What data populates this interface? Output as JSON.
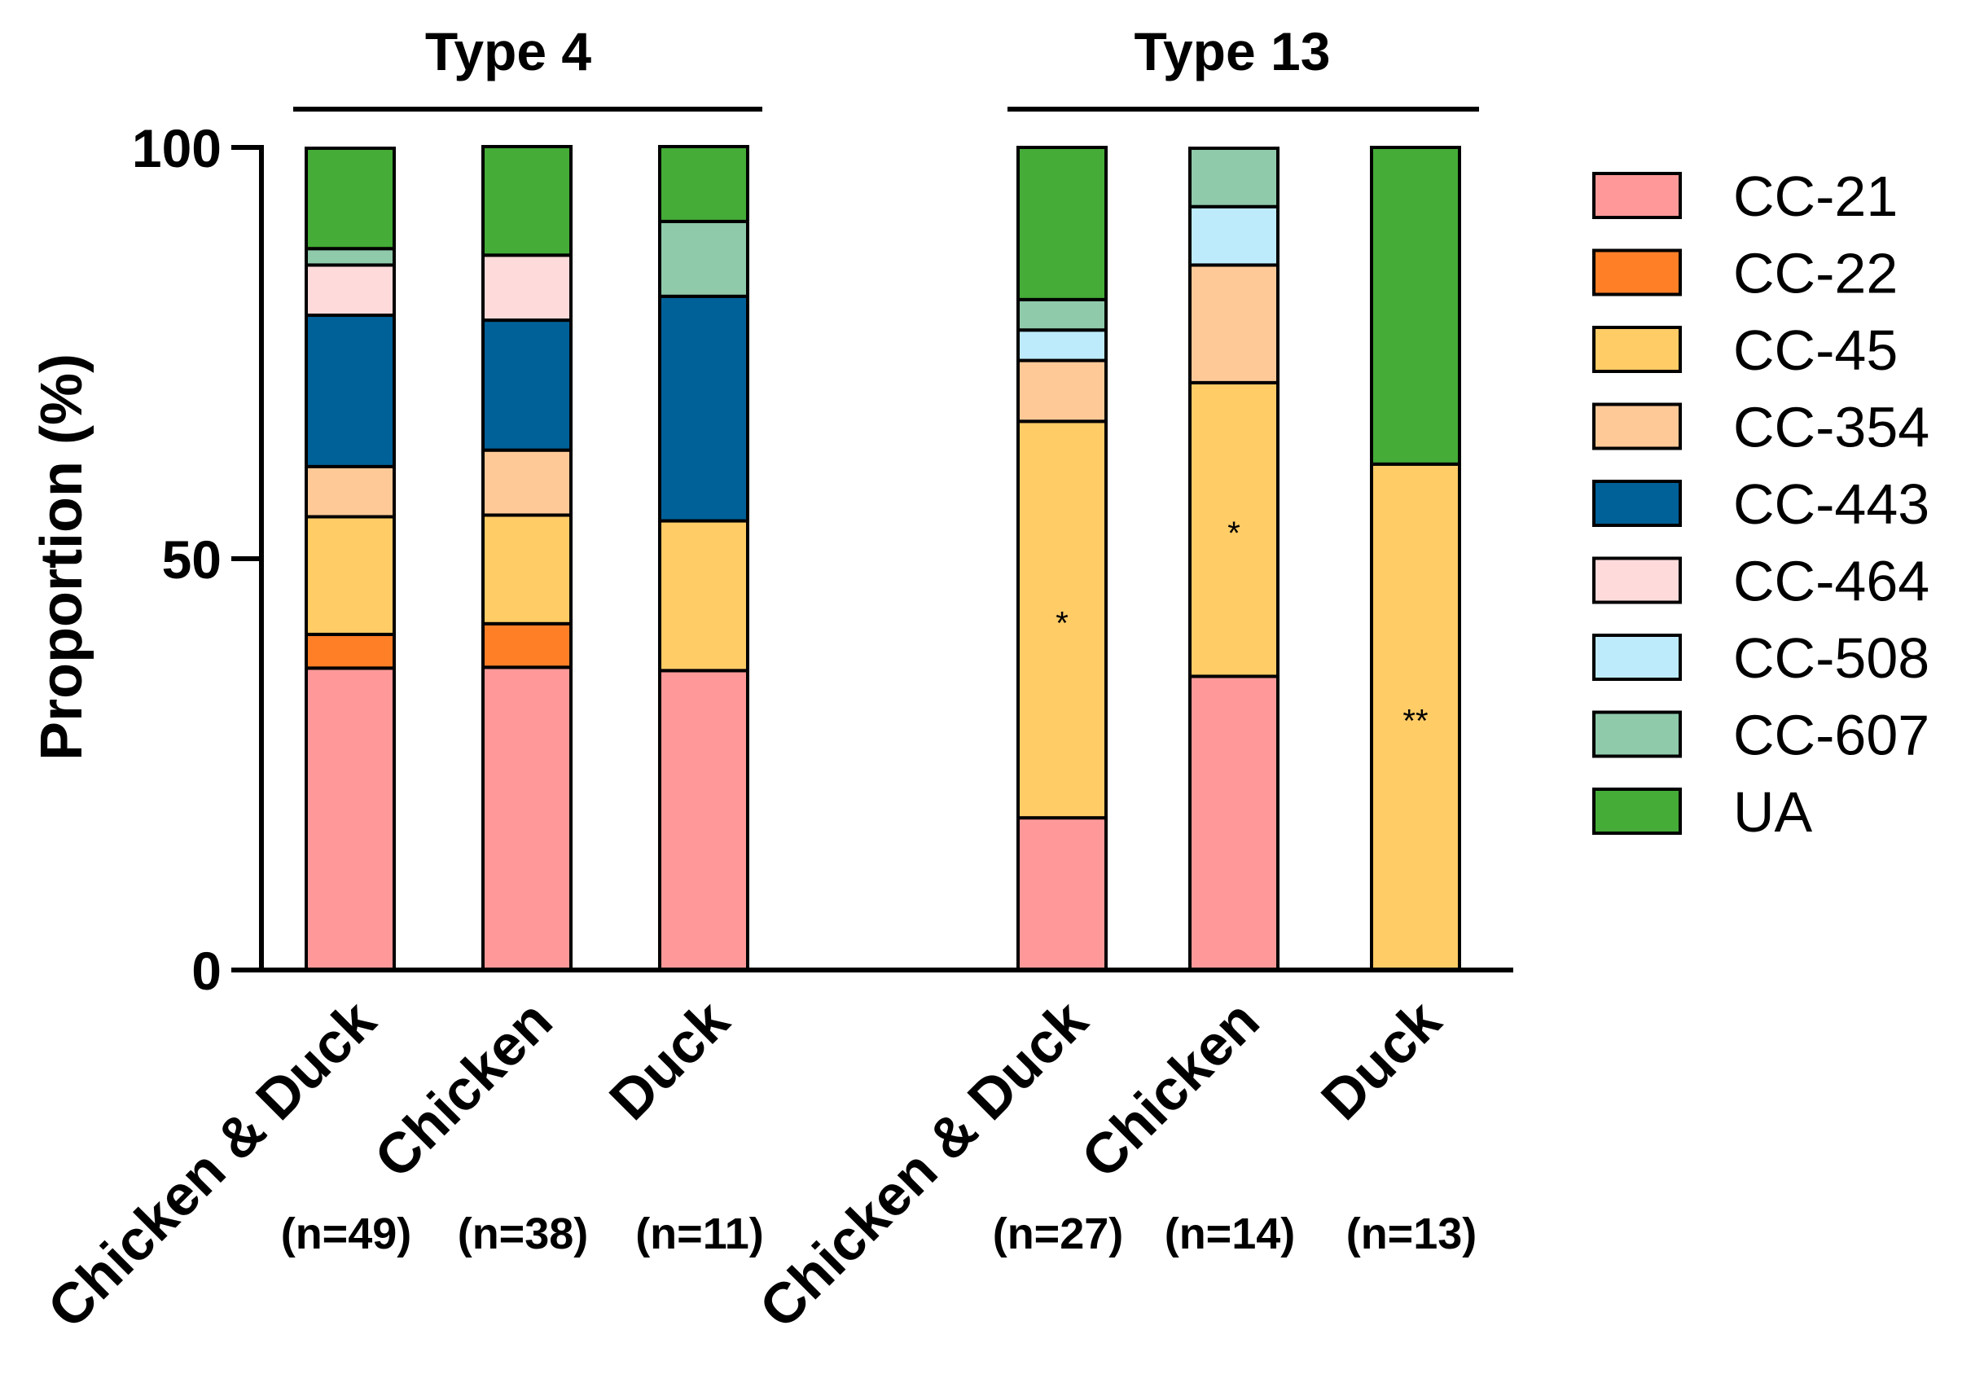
{
  "chart_data": {
    "type": "stacked-bar",
    "ylabel": "Proportion (%)",
    "ylim": [
      0,
      100
    ],
    "yticks": [
      0,
      50,
      100
    ],
    "groups": [
      {
        "label": "Type 4",
        "bars": [
          0,
          1,
          2
        ]
      },
      {
        "label": "Type 13",
        "bars": [
          3,
          4,
          5
        ]
      }
    ],
    "categories": [
      "Chicken & Duck",
      "Chicken",
      "Duck",
      "Chicken & Duck",
      "Chicken",
      "Duck"
    ],
    "n_labels": [
      "(n=49)",
      "(n=38)",
      "(n=11)",
      "(n=27)",
      "(n=14)",
      "(n=13)"
    ],
    "series": [
      {
        "name": "CC-21",
        "color": "#FF9999",
        "values": [
          36.7,
          36.8,
          36.4,
          18.5,
          35.7,
          0
        ]
      },
      {
        "name": "CC-22",
        "color": "#FF7F27",
        "values": [
          4.1,
          5.3,
          0,
          0,
          0,
          0
        ]
      },
      {
        "name": "CC-45",
        "color": "#FFCC66",
        "values": [
          14.3,
          13.2,
          18.2,
          48.2,
          35.7,
          61.5
        ]
      },
      {
        "name": "CC-354",
        "color": "#FFC997",
        "values": [
          6.1,
          7.9,
          0,
          7.4,
          14.3,
          0
        ]
      },
      {
        "name": "CC-443",
        "color": "#006199",
        "values": [
          18.4,
          15.8,
          27.3,
          0,
          0,
          0
        ]
      },
      {
        "name": "CC-464",
        "color": "#FFDADA",
        "values": [
          6.1,
          7.9,
          0,
          0,
          0,
          0
        ]
      },
      {
        "name": "CC-508",
        "color": "#BDEBFB",
        "values": [
          0,
          0,
          0,
          3.7,
          7.1,
          0
        ]
      },
      {
        "name": "CC-607",
        "color": "#8FCAAB",
        "values": [
          2.0,
          0,
          9.1,
          3.7,
          7.1,
          0
        ]
      },
      {
        "name": "UA",
        "color": "#44AC37",
        "values": [
          12.2,
          13.2,
          9.1,
          18.5,
          0,
          38.5
        ]
      }
    ],
    "annotations": [
      {
        "bar": 3,
        "series": "CC-45",
        "text": "*"
      },
      {
        "bar": 4,
        "series": "CC-45",
        "text": "*"
      },
      {
        "bar": 5,
        "series": "CC-45",
        "text": "**"
      }
    ],
    "legend_position": "right"
  }
}
